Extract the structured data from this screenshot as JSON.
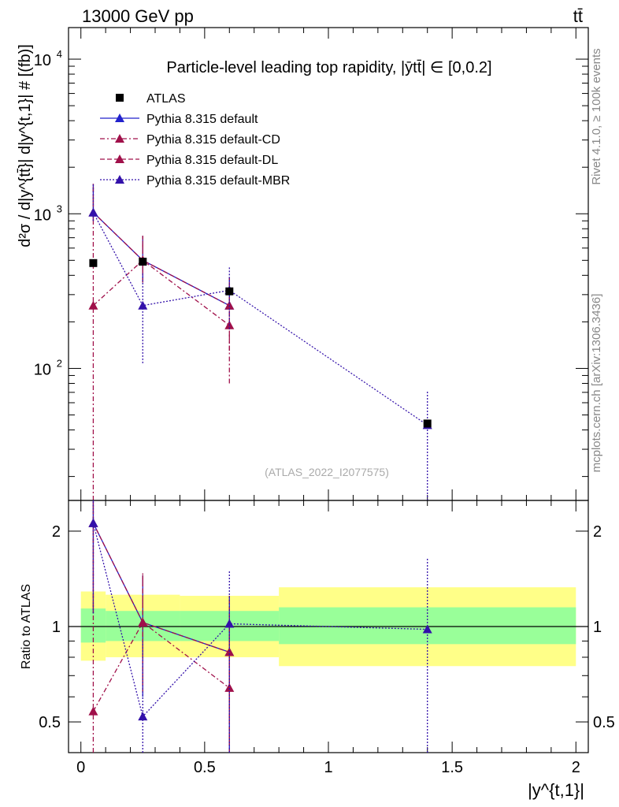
{
  "header": {
    "energy_label": "13000 GeV pp",
    "process_label": "tt̄"
  },
  "side_labels": {
    "rivet": "Rivet 4.1.0, ≥ 100k events",
    "mcplots": "mcplots.cern.ch [arXiv:1306.3436]"
  },
  "chart_data": [
    {
      "type": "line",
      "panel": "main",
      "title": "Particle-level leading top rapidity, |ȳtt̄| ∈ [0,0.2]",
      "xlabel": "|y^{t,1}|",
      "ylabel": "d²σ / d|y^{tt̄}| d|y^{t,1}| # [(fb)]",
      "yscale": "log",
      "xlim": [
        -0.05,
        2.05
      ],
      "ylim": [
        14,
        16000
      ],
      "y_ticks": [
        {
          "value": 100,
          "base": "10",
          "exp": "2"
        },
        {
          "value": 1000,
          "base": "10",
          "exp": "3"
        },
        {
          "value": 10000,
          "base": "10",
          "exp": "4"
        }
      ],
      "watermark": "(ATLAS_2022_I2077575)",
      "data": {
        "name": "ATLAS",
        "x": [
          0.05,
          0.25,
          0.6,
          1.4
        ],
        "y": [
          480,
          490,
          315,
          44
        ],
        "color": "#000000"
      },
      "series": [
        {
          "name": "Pythia 8.315 default",
          "x": [
            0.05,
            0.25,
            0.6
          ],
          "y": [
            1020,
            500,
            255
          ],
          "err_lo": [
            900,
            360,
            255
          ],
          "err_hi": [
            1560,
            720,
            390
          ],
          "color": "#2222cc",
          "dash": "",
          "show_err": false
        },
        {
          "name": "Pythia 8.315 default-CD",
          "x": [
            0.05,
            0.25,
            0.6
          ],
          "y": [
            255,
            500,
            190
          ],
          "err_lo": [
            14,
            360,
            80
          ],
          "err_hi": [
            1560,
            720,
            330
          ],
          "color": "#a0104a",
          "dash": "6,3,2,3",
          "show_err": true
        },
        {
          "name": "Pythia 8.315 default-DL",
          "x": [
            0.05,
            0.25,
            0.6
          ],
          "y": [
            1020,
            500,
            255
          ],
          "err_lo": [
            900,
            360,
            130
          ],
          "err_hi": [
            1560,
            720,
            390
          ],
          "color": "#a0104a",
          "dash": "6,3",
          "show_err": true
        },
        {
          "name": "Pythia 8.315 default-MBR",
          "x": [
            0.05,
            0.25,
            0.6,
            1.4
          ],
          "y": [
            1020,
            255,
            320,
            43
          ],
          "err_lo": [
            900,
            108,
            180,
            14
          ],
          "err_hi": [
            1560,
            420,
            460,
            72
          ],
          "color": "#3311aa",
          "dash": "2,2",
          "show_err": true
        }
      ]
    },
    {
      "type": "line",
      "panel": "ratio",
      "ylabel": "Ratio to ATLAS",
      "xlabel": "|y^{t,1}|",
      "yscale": "log",
      "xlim": [
        -0.05,
        2.05
      ],
      "ylim": [
        0.4,
        2.5
      ],
      "y_ticks": [
        0.5,
        1,
        2
      ],
      "y_tick_labels": [
        "0.5",
        "1",
        "2"
      ],
      "x_ticks": [
        0,
        0.5,
        1,
        1.5,
        2
      ],
      "x_tick_labels": [
        "0",
        "0.5",
        "1",
        "1.5",
        "2"
      ],
      "bands": [
        {
          "x0": 0.0,
          "x1": 0.1,
          "inner": [
            0.89,
            1.14
          ],
          "outer": [
            0.78,
            1.29
          ]
        },
        {
          "x0": 0.1,
          "x1": 0.4,
          "inner": [
            0.9,
            1.12
          ],
          "outer": [
            0.8,
            1.26
          ]
        },
        {
          "x0": 0.4,
          "x1": 0.8,
          "inner": [
            0.9,
            1.12
          ],
          "outer": [
            0.8,
            1.25
          ]
        },
        {
          "x0": 0.8,
          "x1": 2.0,
          "inner": [
            0.88,
            1.15
          ],
          "outer": [
            0.75,
            1.33
          ]
        }
      ],
      "band_colors": {
        "inner": "#99ff99",
        "outer": "#ffff88"
      },
      "series": [
        {
          "name": "Pythia 8.315 default",
          "x": [
            0.05,
            0.25,
            0.6
          ],
          "y": [
            2.12,
            1.03,
            0.83
          ],
          "err_lo": [
            1.1,
            0.6,
            0.4
          ],
          "err_hi": [
            2.5,
            1.45,
            1.25
          ],
          "color": "#2222cc",
          "dash": "",
          "show_err": false
        },
        {
          "name": "Pythia 8.315 default-CD",
          "x": [
            0.05,
            0.25,
            0.6
          ],
          "y": [
            0.54,
            1.03,
            0.64
          ],
          "err_lo": [
            0.4,
            0.62,
            0.35
          ],
          "err_hi": [
            2.5,
            1.48,
            1.05
          ],
          "color": "#a0104a",
          "dash": "6,3,2,3",
          "show_err": true
        },
        {
          "name": "Pythia 8.315 default-DL",
          "x": [
            0.05,
            0.25,
            0.6
          ],
          "y": [
            2.12,
            1.03,
            0.83
          ],
          "err_lo": [
            1.1,
            0.65,
            0.42
          ],
          "err_hi": [
            2.5,
            1.45,
            1.25
          ],
          "color": "#a0104a",
          "dash": "6,3",
          "show_err": true
        },
        {
          "name": "Pythia 8.315 default-MBR",
          "x": [
            0.05,
            0.25,
            0.6,
            1.4
          ],
          "y": [
            2.12,
            0.52,
            1.02,
            0.98
          ],
          "err_lo": [
            1.1,
            0.4,
            0.4,
            0.4
          ],
          "err_hi": [
            2.5,
            0.9,
            1.5,
            1.65
          ],
          "color": "#3311aa",
          "dash": "2,2",
          "show_err": true
        }
      ]
    }
  ]
}
